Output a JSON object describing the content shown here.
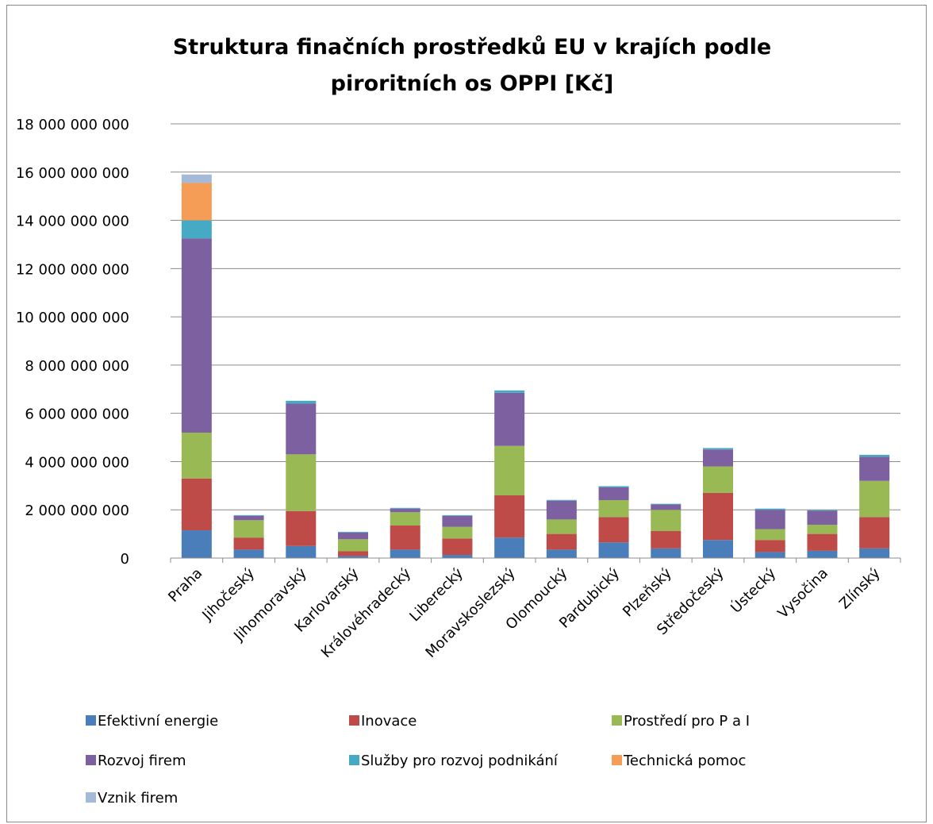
{
  "chart_data": {
    "type": "bar",
    "stacked": true,
    "title_lines": [
      "Struktura  finačních prostředků EU v krajích podle",
      "piroritních os OPPI [Kč]"
    ],
    "xlabel": "",
    "ylabel": "",
    "ylim": [
      0,
      18000000000
    ],
    "ytick_step": 2000000000,
    "ytick_labels": [
      "0",
      "2 000 000 000",
      "4 000 000 000",
      "6 000 000 000",
      "8 000 000 000",
      "10 000 000 000",
      "12 000 000 000",
      "14 000 000 000",
      "16 000 000 000",
      "18 000 000 000"
    ],
    "grid": true,
    "legend_position": "bottom",
    "categories": [
      "Praha",
      "Jihočeský",
      "Jihomoravský",
      "Karlovarský",
      "Královéhradecký",
      "Liberecký",
      "Moravskoslezský",
      "Olomoucký",
      "Pardubický",
      "Plzeňský",
      "Středočeský",
      "Ústecký",
      "Vysočina",
      "Zlínský"
    ],
    "series": [
      {
        "name": "Efektivní energie",
        "color": "#4a7ebb",
        "values": [
          1150000000,
          350000000,
          500000000,
          80000000,
          350000000,
          130000000,
          850000000,
          350000000,
          650000000,
          400000000,
          750000000,
          250000000,
          300000000,
          400000000
        ]
      },
      {
        "name": "Inovace",
        "color": "#be4b48",
        "values": [
          2150000000,
          500000000,
          1450000000,
          200000000,
          1000000000,
          680000000,
          1750000000,
          650000000,
          1050000000,
          720000000,
          1950000000,
          500000000,
          700000000,
          1300000000
        ]
      },
      {
        "name": "Prostředí pro P a I",
        "color": "#98b954",
        "values": [
          1900000000,
          720000000,
          2350000000,
          500000000,
          550000000,
          490000000,
          2050000000,
          600000000,
          700000000,
          880000000,
          1100000000,
          450000000,
          380000000,
          1500000000
        ]
      },
      {
        "name": "Rozvoj firem",
        "color": "#7d60a0",
        "values": [
          8050000000,
          180000000,
          2100000000,
          280000000,
          150000000,
          450000000,
          2200000000,
          780000000,
          530000000,
          220000000,
          700000000,
          800000000,
          580000000,
          1000000000
        ]
      },
      {
        "name": "Služby pro rozvoj podnikání",
        "color": "#46aac5",
        "values": [
          750000000,
          30000000,
          120000000,
          30000000,
          30000000,
          30000000,
          100000000,
          30000000,
          50000000,
          30000000,
          60000000,
          50000000,
          30000000,
          80000000
        ]
      },
      {
        "name": "Technická pomoc",
        "color": "#f59d56",
        "values": [
          1550000000,
          0,
          0,
          0,
          0,
          0,
          0,
          0,
          0,
          0,
          0,
          0,
          0,
          0
        ]
      },
      {
        "name": "Vznik firem",
        "color": "#a5b9d9",
        "values": [
          350000000,
          0,
          0,
          0,
          0,
          0,
          0,
          0,
          0,
          0,
          0,
          0,
          0,
          0
        ]
      }
    ]
  }
}
